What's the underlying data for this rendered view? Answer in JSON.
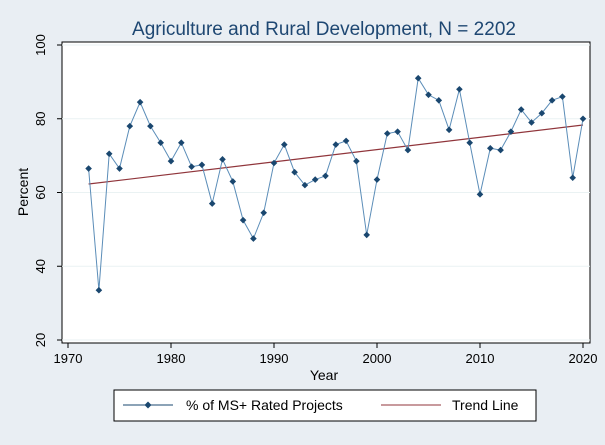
{
  "chart_data": {
    "type": "line",
    "title": "Agriculture and Rural Development, N = 2202",
    "xlabel": "Year",
    "ylabel": "Percent",
    "xlim": [
      1970,
      2020
    ],
    "ylim": [
      20,
      100
    ],
    "x_ticks": [
      1970,
      1980,
      1990,
      2000,
      2010,
      2020
    ],
    "y_ticks": [
      20,
      40,
      60,
      80,
      100
    ],
    "grid": "horizontal",
    "legend_position": "bottom",
    "series": [
      {
        "name": "% of MS+ Rated Projects",
        "color": "#1a476f",
        "style": "line-with-diamond-markers",
        "points": [
          [
            1972,
            66.5
          ],
          [
            1973,
            33.5
          ],
          [
            1974,
            70.5
          ],
          [
            1975,
            66.5
          ],
          [
            1976,
            78
          ],
          [
            1977,
            84.5
          ],
          [
            1978,
            78
          ],
          [
            1979,
            73.5
          ],
          [
            1980,
            68.5
          ],
          [
            1981,
            73.5
          ],
          [
            1982,
            67
          ],
          [
            1983,
            67.5
          ],
          [
            1984,
            57
          ],
          [
            1985,
            69
          ],
          [
            1986,
            63
          ],
          [
            1987,
            52.5
          ],
          [
            1988,
            47.5
          ],
          [
            1989,
            54.5
          ],
          [
            1990,
            68
          ],
          [
            1991,
            73
          ],
          [
            1992,
            65.5
          ],
          [
            1993,
            62
          ],
          [
            1994,
            63.5
          ],
          [
            1995,
            64.5
          ],
          [
            1996,
            73
          ],
          [
            1997,
            74
          ],
          [
            1998,
            68.5
          ],
          [
            1999,
            48.5
          ],
          [
            2000,
            63.5
          ],
          [
            2001,
            76
          ],
          [
            2002,
            76.5
          ],
          [
            2003,
            71.5
          ],
          [
            2004,
            91
          ],
          [
            2005,
            86.5
          ],
          [
            2006,
            85
          ],
          [
            2007,
            77
          ],
          [
            2008,
            88
          ],
          [
            2009,
            73.5
          ],
          [
            2010,
            59.5
          ],
          [
            2011,
            72
          ],
          [
            2012,
            71.5
          ],
          [
            2013,
            76.5
          ],
          [
            2014,
            82.5
          ],
          [
            2015,
            79
          ],
          [
            2016,
            81.5
          ],
          [
            2017,
            85
          ],
          [
            2018,
            86
          ],
          [
            2019,
            64
          ],
          [
            2020,
            80
          ]
        ]
      },
      {
        "name": "Trend Line",
        "color": "#90353b",
        "style": "line",
        "points": [
          [
            1972,
            62.3
          ],
          [
            2020,
            78.3
          ]
        ]
      }
    ]
  }
}
